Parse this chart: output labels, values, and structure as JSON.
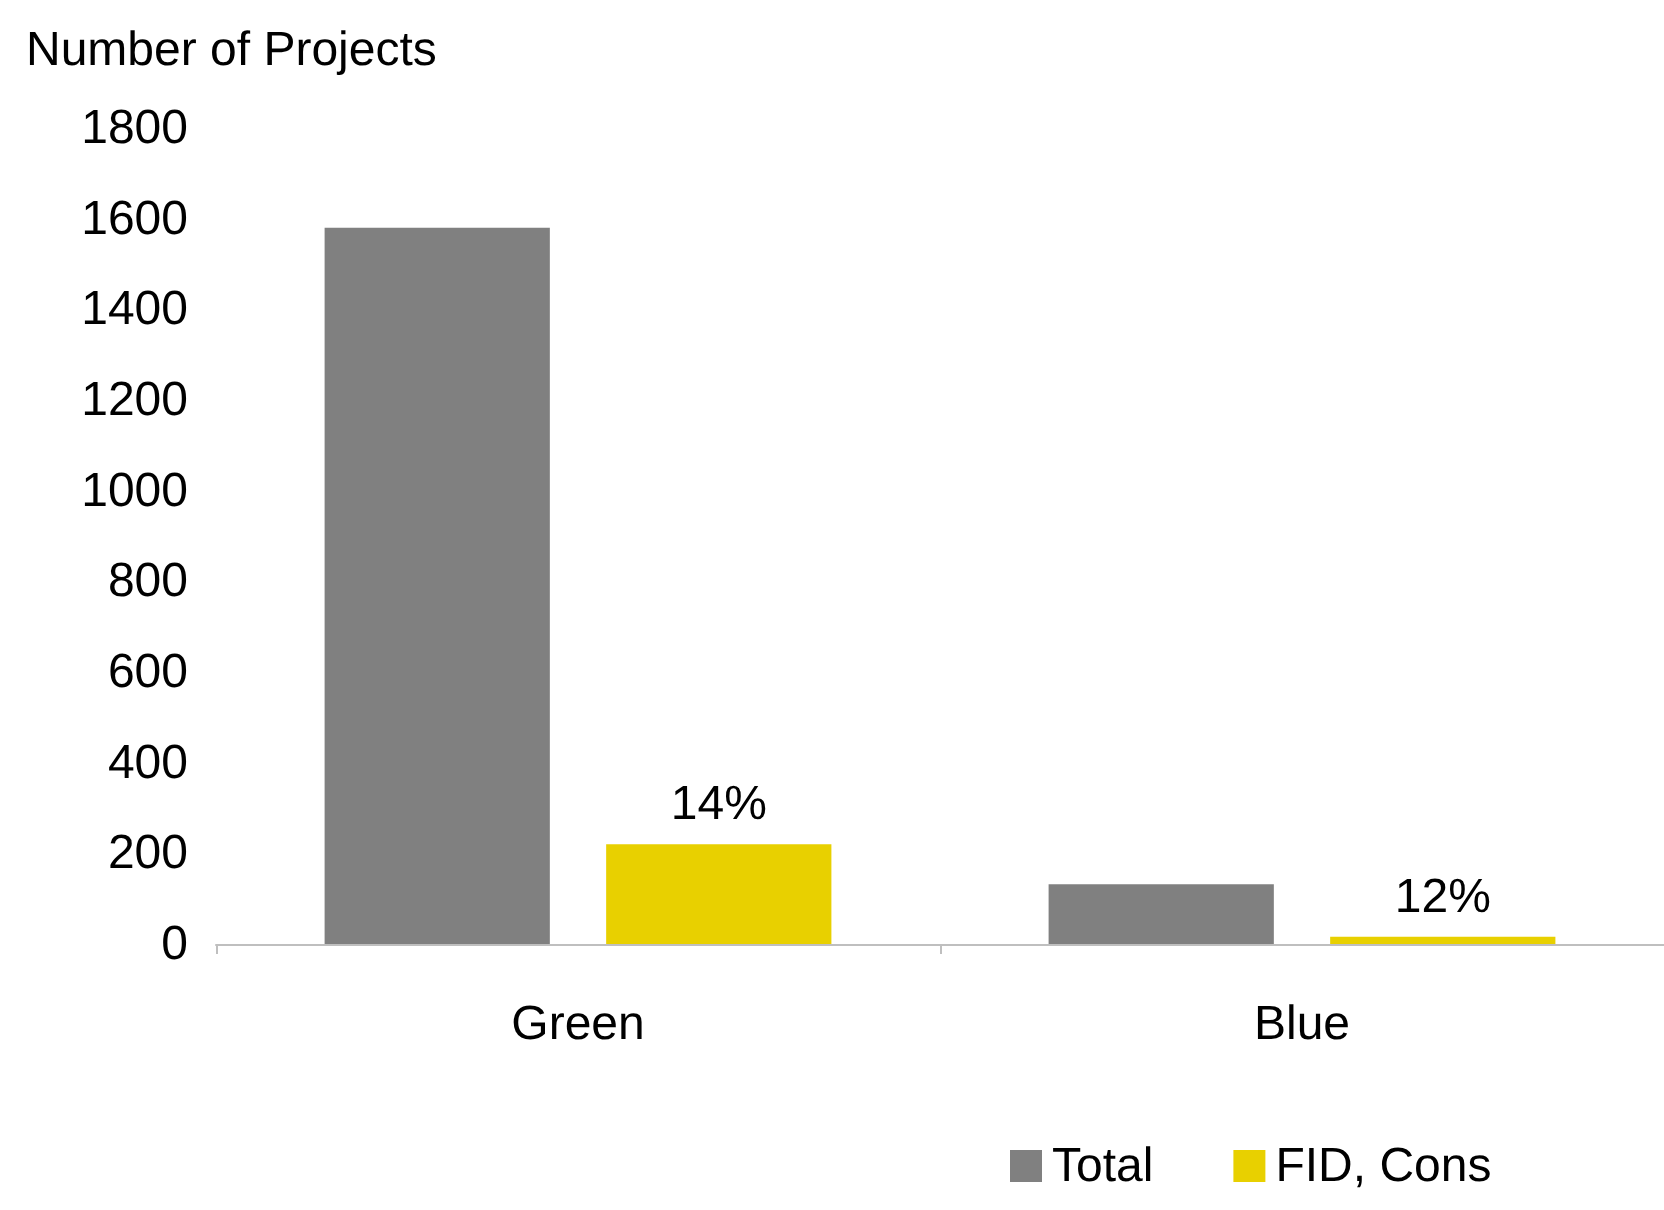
{
  "chart_data": {
    "type": "bar",
    "ylabel": "Number of Projects",
    "categories": [
      "Green",
      "Blue"
    ],
    "series": [
      {
        "name": "Total",
        "color": "#808080",
        "values": [
          1580,
          132
        ]
      },
      {
        "name": "FID, Cons",
        "color": "#e8d000",
        "values": [
          220,
          16
        ]
      }
    ],
    "annotations": [
      "14%",
      "12%"
    ],
    "ylim": [
      0,
      1800
    ],
    "yticks": [
      0,
      200,
      400,
      600,
      800,
      1000,
      1200,
      1400,
      1600,
      1800
    ],
    "grid": false,
    "legend": "bottom"
  }
}
